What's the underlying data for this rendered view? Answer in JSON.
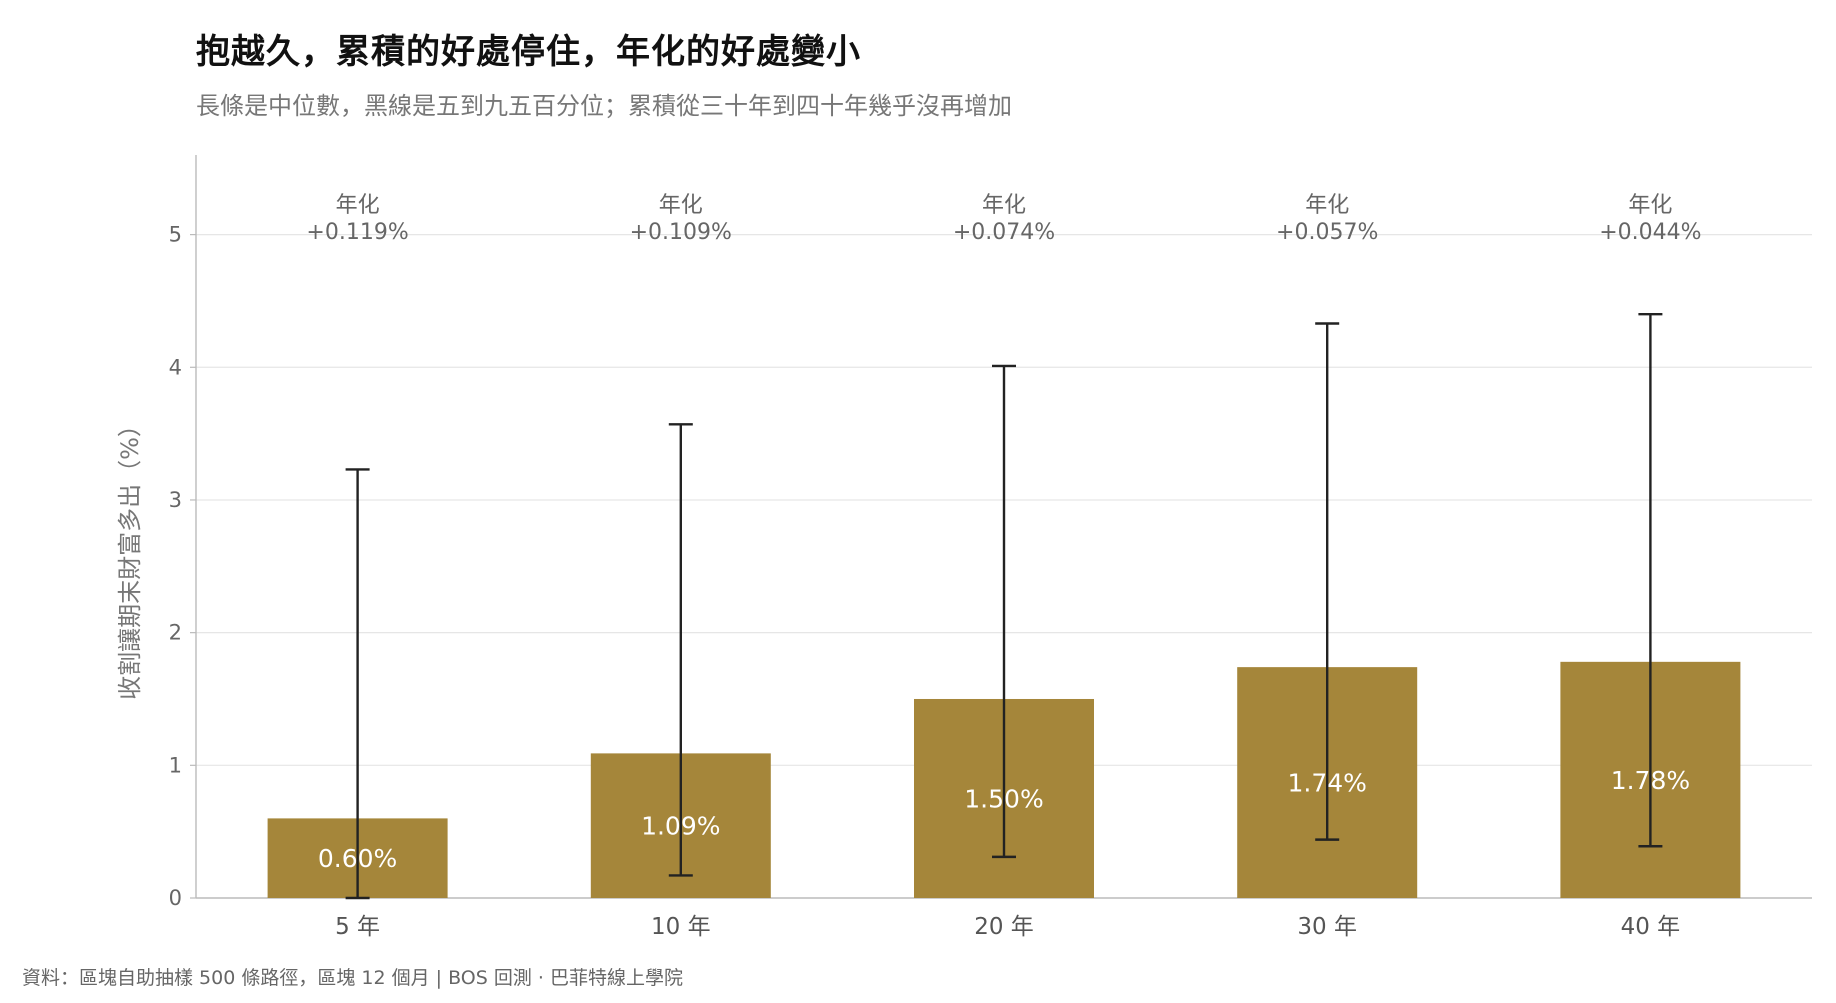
{
  "title": "抱越久，累積的好處停住，年化的好處變小",
  "subtitle": "長條是中位數，黑線是五到九五百分位；累積從三十年到四十年幾乎沒再增加",
  "source": "資料：區塊自助抽樣 500 條路徑，區塊 12 個月 | BOS 回測 ·  巴菲特線上學院",
  "colors": {
    "bar": "#a5863a",
    "errorbar": "#222222",
    "grid": "#e6e6e6",
    "axis": "#bbbbbb"
  },
  "chart_data": {
    "type": "bar",
    "categories": [
      "5 年",
      "10 年",
      "20 年",
      "30 年",
      "40 年"
    ],
    "values": [
      0.6,
      1.09,
      1.5,
      1.74,
      1.78
    ],
    "value_labels": [
      "0.60%",
      "1.09%",
      "1.50%",
      "1.74%",
      "1.78%"
    ],
    "p5": [
      0.0,
      0.17,
      0.31,
      0.44,
      0.39
    ],
    "p95": [
      3.23,
      3.57,
      4.01,
      4.33,
      4.4
    ],
    "annual_prefix": "年化",
    "annual_labels": [
      "+0.119%",
      "+0.109%",
      "+0.074%",
      "+0.057%",
      "+0.044%"
    ],
    "ylabel": "收割讓期末財富多出（%）",
    "xlabel": "",
    "yticks": [
      0,
      1,
      2,
      3,
      4,
      5
    ],
    "ylim": [
      0,
      5.6
    ],
    "grid": true
  }
}
